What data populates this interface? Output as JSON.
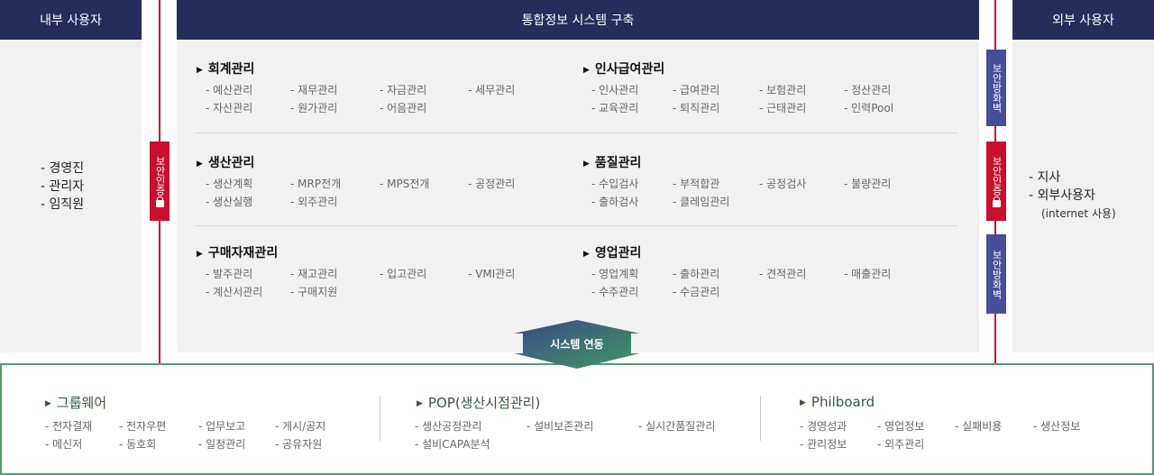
{
  "colors": {
    "navy": "#262d5a",
    "red": "#c8102e",
    "blue": "#454e96",
    "green": "#4f9e6e"
  },
  "left": {
    "title": "내부 사용자",
    "users": [
      "- 경영진",
      "- 관리자",
      "- 임직원"
    ]
  },
  "center": {
    "title": "통합정보 시스템 구축",
    "sections": [
      {
        "title": "회계관리",
        "items": [
          "- 예산관리",
          "- 재무관리",
          "- 자금관리",
          "- 세무관리",
          "- 자산관리",
          "- 원가관리",
          "- 어음관리"
        ]
      },
      {
        "title": "인사급여관리",
        "items": [
          "- 인사관리",
          "- 급여관리",
          "- 보험관리",
          "- 정산관리",
          "- 교육관리",
          "- 퇴직관리",
          "- 근태관리",
          "- 인력Pool"
        ]
      },
      {
        "title": "생산관리",
        "items": [
          "- 생산계획",
          "- MRP전개",
          "- MPS전개",
          "- 공정관리",
          "- 생산실행",
          "- 외주관리"
        ]
      },
      {
        "title": "품질관리",
        "items": [
          "- 수입검사",
          "- 부적합관",
          "- 공정검사",
          "- 불량관리",
          "- 출하검사",
          "- 클레임관리"
        ]
      },
      {
        "title": "구매자재관리",
        "items": [
          "- 발주관리",
          "- 재고관리",
          "- 입고관리",
          "- VMI관리",
          "- 계산서관리",
          "- 구매지원"
        ]
      },
      {
        "title": "영업관리",
        "items": [
          "- 영업계획",
          "- 출하관리",
          "- 견적관리",
          "- 매출관리",
          "- 수주관리",
          "- 수금관리"
        ]
      }
    ]
  },
  "right": {
    "title": "외부 사용자",
    "users": [
      "- 지사",
      "- 외부사용자"
    ],
    "note": "(internet 사용)"
  },
  "badges": {
    "auth": "보안인증",
    "firewall": "보안방화벽"
  },
  "link": {
    "label": "시스템 연동"
  },
  "bottom": [
    {
      "title": "그룹웨어",
      "items": [
        "- 전자결재",
        "- 전자우편",
        "- 업무보고",
        "- 게시/공지",
        "- 메신저",
        "- 동호회",
        "- 일정관리",
        "- 공유자원"
      ]
    },
    {
      "title": "POP(생산시점관리)",
      "items": [
        "- 생산공정관리",
        "- 설비보존관리",
        "- 실시간품질관리",
        "- 설비CAPA분석"
      ]
    },
    {
      "title": "Philboard",
      "items": [
        "- 경영성과",
        "- 영업정보",
        "- 실패비용",
        "- 생산정보",
        "- 관리정보",
        "- 외주관리"
      ]
    }
  ]
}
